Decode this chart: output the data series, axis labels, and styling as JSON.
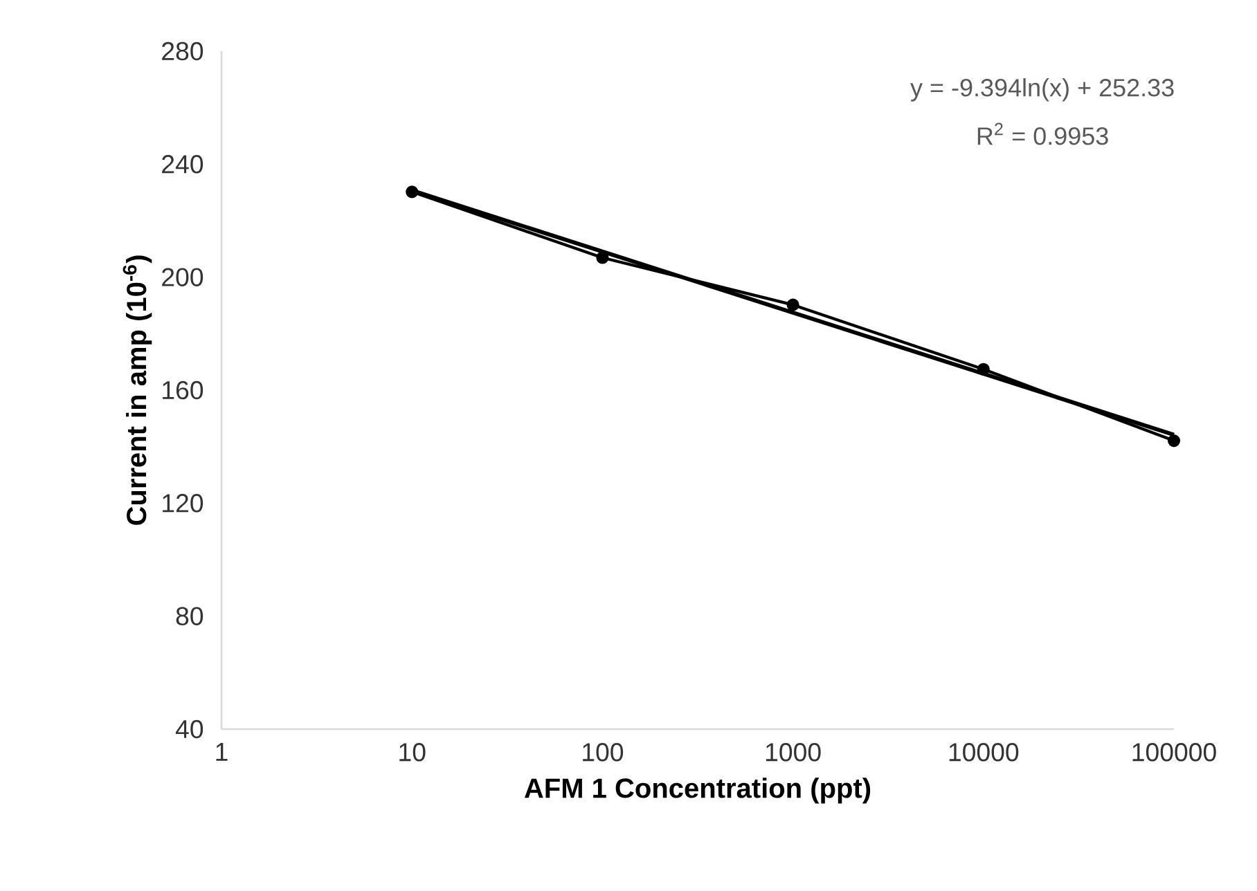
{
  "chart_data": {
    "type": "line",
    "xlabel": "AFM 1 Concentration (ppt)",
    "ylabel": "Current in amp (10$^{-6}$)",
    "log": "x",
    "xlim": [
      1,
      100000
    ],
    "xticks": [
      1,
      10,
      100,
      1000,
      10000,
      100000
    ],
    "ylim": [
      40,
      280
    ],
    "yticks": [
      40,
      80,
      120,
      160,
      200,
      240,
      280
    ],
    "annotations": [
      "y = -9.394ln(x) + 252.33",
      "R$^{2}$ = 0.9953"
    ],
    "series": [
      {
        "marker": "circle",
        "color": "#000000",
        "x": [
          10,
          100,
          1000,
          10000,
          100000
        ],
        "values": [
          230.2,
          206.9,
          190.2,
          167.4,
          142.1
        ]
      },
      {
        "type": "line",
        "marker": "none",
        "color": "#000000",
        "x": [
          10,
          100000
        ],
        "values": [
          230.7,
          144.2
        ]
      }
    ]
  }
}
